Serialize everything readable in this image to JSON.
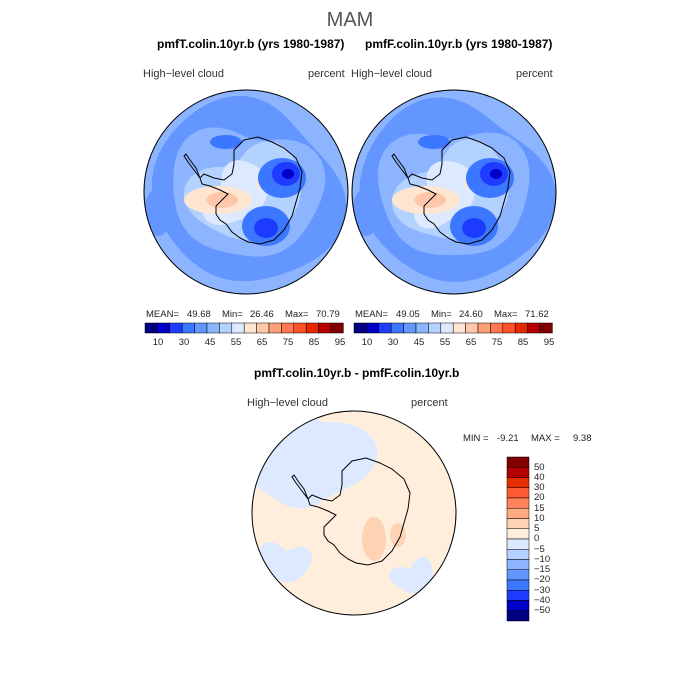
{
  "figure": {
    "season": "MAM",
    "colors": {
      "full_scale": [
        "#000080",
        "#0000c8",
        "#1e3cff",
        "#3c78ff",
        "#6496ff",
        "#8cb4ff",
        "#b4d2ff",
        "#dce9ff",
        "#ffe6d2",
        "#ffc8aa",
        "#ffa078",
        "#ff7850",
        "#ff5028",
        "#e62800",
        "#b40000",
        "#800000"
      ],
      "diff_scale": [
        "#000080",
        "#0000c8",
        "#1e3cff",
        "#3c78ff",
        "#6496ff",
        "#8cb4ff",
        "#b4d2ff",
        "#dce9ff",
        "#ffeedc",
        "#ffd2b4",
        "#ffaa82",
        "#ff825a",
        "#ff5a32",
        "#e62d00",
        "#b40000",
        "#800000"
      ]
    }
  },
  "chart_data": [
    {
      "type": "heatmap",
      "title": "pmfT.colin.10yr.b (yrs 1980-1987)",
      "variable": "High−level cloud",
      "units": "percent",
      "mean_label": "MEAN=",
      "mean": "49.68",
      "min_label": "Min=",
      "min": "26.46",
      "max_label": "Max=",
      "max": "70.79",
      "colorbar_ticks": [
        "10",
        "30",
        "45",
        "55",
        "65",
        "75",
        "85",
        "95"
      ]
    },
    {
      "type": "heatmap",
      "title": "pmfF.colin.10yr.b (yrs 1980-1987)",
      "variable": "High−level cloud",
      "units": "percent",
      "mean_label": "MEAN=",
      "mean": "49.05",
      "min_label": "Min=",
      "min": "24.60",
      "max_label": "Max=",
      "max": "71.62",
      "colorbar_ticks": [
        "10",
        "30",
        "45",
        "55",
        "65",
        "75",
        "85",
        "95"
      ]
    },
    {
      "type": "heatmap",
      "title": "pmfT.colin.10yr.b - pmfF.colin.10yr.b",
      "variable": "High−level cloud",
      "units": "percent",
      "min_label": "MIN =",
      "min": "-9.21",
      "max_label": "MAX =",
      "max": "9.38",
      "colorbar_ticks": [
        "50",
        "40",
        "30",
        "20",
        "15",
        "10",
        "5",
        "0",
        "−5",
        "−10",
        "−15",
        "−20",
        "−30",
        "−40",
        "−50"
      ]
    }
  ]
}
